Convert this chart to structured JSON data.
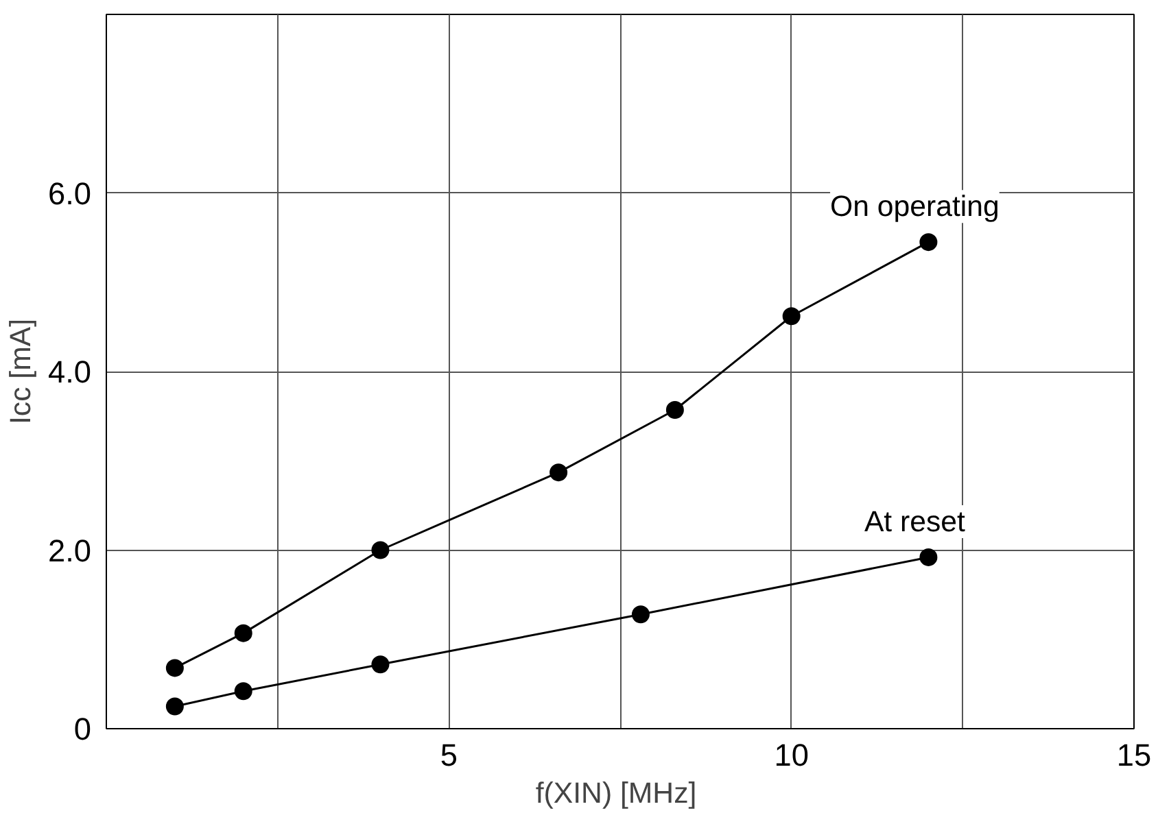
{
  "chart_data": {
    "type": "line",
    "xlabel": "f(XIN)  [MHz]",
    "ylabel": "Icc [mA]",
    "xlim": [
      0,
      15
    ],
    "ylim": [
      0,
      8
    ],
    "xticks": [
      {
        "value": 2.5,
        "label": null
      },
      5,
      {
        "value": 7.5,
        "label": null
      },
      10,
      {
        "value": 12.5,
        "label": null
      },
      15
    ],
    "yticks": [
      0,
      {
        "value": 2,
        "label": "2.0"
      },
      {
        "value": 4,
        "label": "4.0"
      },
      {
        "value": 6,
        "label": "6.0"
      },
      {
        "value": 8,
        "label": null
      }
    ],
    "grid": true,
    "marker": "circle",
    "line_style": "solid",
    "series": [
      {
        "name": "On operating",
        "color": "#000000",
        "x": [
          1,
          2,
          4,
          6.6,
          8.3,
          10,
          12
        ],
        "values": [
          0.68,
          1.07,
          2.0,
          2.87,
          3.57,
          4.62,
          5.45
        ]
      },
      {
        "name": "At reset",
        "color": "#000000",
        "x": [
          1,
          2,
          4,
          7.8,
          12
        ],
        "values": [
          0.25,
          0.42,
          0.72,
          1.28,
          1.92
        ]
      }
    ]
  }
}
